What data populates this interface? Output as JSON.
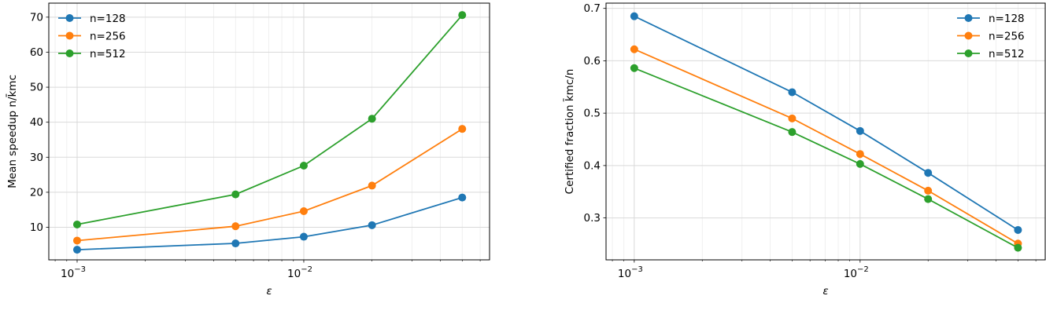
{
  "chart_data": [
    {
      "type": "line",
      "x": [
        0.001,
        0.005,
        0.01,
        0.02,
        0.05
      ],
      "xscale": "log",
      "xlim": [
        0.00075,
        0.066
      ],
      "ylim": [
        0.7,
        74
      ],
      "yticks": [
        10,
        20,
        30,
        40,
        50,
        60,
        70
      ],
      "ytick_labels": [
        "10",
        "20",
        "30",
        "40",
        "50",
        "60",
        "70"
      ],
      "xticks": [
        0.001,
        0.01
      ],
      "xtick_label_bases": [
        "10",
        "10"
      ],
      "xtick_label_exps": [
        "−3",
        "−2"
      ],
      "xlabel": "ε",
      "ylabel": "Mean speedup n/k̄mc",
      "legend_location": "upper-left",
      "grid": true,
      "series": [
        {
          "name": "n=128",
          "color": "#1f77b4",
          "values": [
            3.6,
            5.4,
            7.3,
            10.6,
            18.5
          ]
        },
        {
          "name": "n=256",
          "color": "#ff7f0e",
          "values": [
            6.2,
            10.3,
            14.6,
            21.9,
            38.1
          ]
        },
        {
          "name": "n=512",
          "color": "#2ca02c",
          "values": [
            10.8,
            19.4,
            27.6,
            41.0,
            70.6
          ]
        }
      ]
    },
    {
      "type": "line",
      "x": [
        0.001,
        0.005,
        0.01,
        0.02,
        0.05
      ],
      "xscale": "log",
      "xlim": [
        0.00075,
        0.066
      ],
      "ylim": [
        0.22,
        0.71
      ],
      "yticks": [
        0.3,
        0.4,
        0.5,
        0.6,
        0.7
      ],
      "ytick_labels": [
        "0.3",
        "0.4",
        "0.5",
        "0.6",
        "0.7"
      ],
      "xticks": [
        0.001,
        0.01
      ],
      "xtick_label_bases": [
        "10",
        "10"
      ],
      "xtick_label_exps": [
        "−3",
        "−2"
      ],
      "xlabel": "ε",
      "ylabel": "Certified fraction k̄mc/n",
      "legend_location": "upper-right",
      "grid": true,
      "series": [
        {
          "name": "n=128",
          "color": "#1f77b4",
          "values": [
            0.685,
            0.54,
            0.466,
            0.386,
            0.277
          ]
        },
        {
          "name": "n=256",
          "color": "#ff7f0e",
          "values": [
            0.622,
            0.49,
            0.422,
            0.352,
            0.251
          ]
        },
        {
          "name": "n=512",
          "color": "#2ca02c",
          "values": [
            0.586,
            0.464,
            0.403,
            0.336,
            0.243
          ]
        }
      ]
    }
  ]
}
